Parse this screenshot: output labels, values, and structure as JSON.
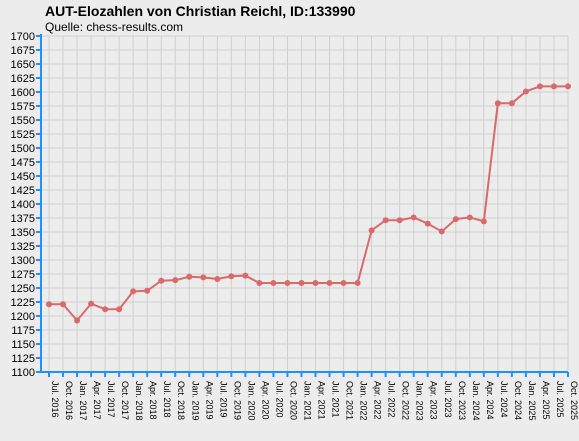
{
  "title": "AUT-Elozahlen von Christian Reichl, ID:133990",
  "subtitle": "Quelle: chess-results.com",
  "chart_data": {
    "type": "line",
    "title": "AUT-Elozahlen von Christian Reichl, ID:133990",
    "subtitle": "Quelle: chess-results.com",
    "xlabel": "",
    "ylabel": "",
    "ylim": [
      1100,
      1700
    ],
    "ytick_step": 25,
    "grid": true,
    "line_color": "#d96a6a",
    "axis_color": "#1e90ff",
    "categories": [
      "Jul. 2016",
      "Oct. 2016",
      "Jan. 2017",
      "Apr. 2017",
      "Jul. 2017",
      "Oct. 2017",
      "Jan. 2018",
      "Apr. 2018",
      "Jul. 2018",
      "Oct. 2018",
      "Jan. 2019",
      "Apr. 2019",
      "Jul. 2019",
      "Oct. 2019",
      "Jan. 2020",
      "Apr. 2020",
      "Jul. 2020",
      "Oct. 2020",
      "Jan. 2021",
      "Apr. 2021",
      "Jul. 2021",
      "Oct. 2021",
      "Jan. 2022",
      "Apr. 2022",
      "Jul. 2022",
      "Oct. 2022",
      "Jan. 2023",
      "Apr. 2023",
      "Jul. 2023",
      "Oct. 2023",
      "Jan. 2024",
      "Apr. 2024",
      "Jul. 2024",
      "Oct. 2024",
      "Jan. 2025",
      "Apr. 2025",
      "Jul. 2025",
      "Oct. 2025"
    ],
    "series": [
      {
        "values": [
          1221,
          1221,
          1192,
          1222,
          1212,
          1212,
          1244,
          1245,
          1263,
          1264,
          1270,
          1269,
          1266,
          1271,
          1272,
          1259,
          1259,
          1259,
          1259,
          1259,
          1259,
          1259,
          1259,
          1353,
          1371,
          1371,
          1376,
          1365,
          1351,
          1373,
          1376,
          1369,
          1580,
          1580,
          1601,
          1610,
          1610,
          1610
        ]
      }
    ]
  }
}
